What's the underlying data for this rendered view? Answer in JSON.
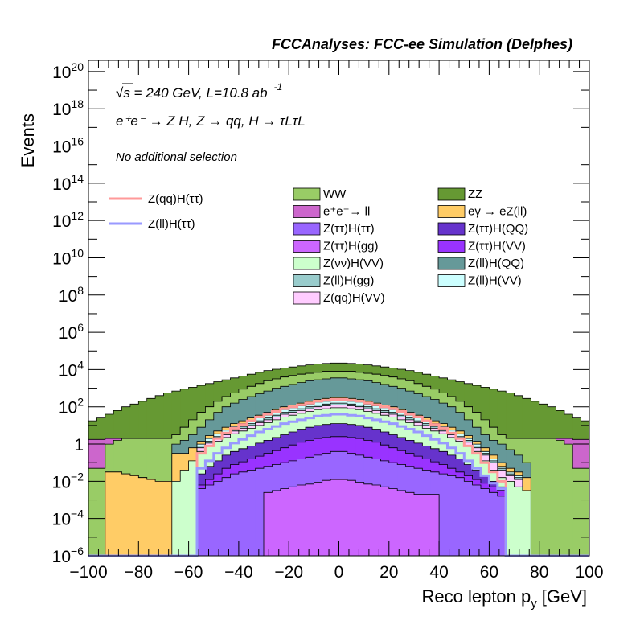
{
  "chart_data": {
    "type": "stacked_histogram",
    "title": "FCCAnalyses: FCC-ee Simulation (Delphes)",
    "xlabel": "Reco lepton p",
    "xlabel_sub": "y",
    "xlabel_unit": "[GeV]",
    "ylabel": "Events",
    "xlim": [
      -100,
      100
    ],
    "ylim_exp": [
      -6,
      20.6
    ],
    "yscale": "log",
    "x_ticks": [
      "−100",
      "−80",
      "−60",
      "−40",
      "−20",
      "0",
      "20",
      "40",
      "60",
      "80",
      "100"
    ],
    "x_tick_values": [
      -100,
      -80,
      -60,
      -40,
      -20,
      0,
      20,
      40,
      60,
      80,
      100
    ],
    "y_ticks": [
      {
        "exp": 20,
        "base": "10",
        "sup": "20"
      },
      {
        "exp": 18,
        "base": "10",
        "sup": "18"
      },
      {
        "exp": 16,
        "base": "10",
        "sup": "16"
      },
      {
        "exp": 14,
        "base": "10",
        "sup": "14"
      },
      {
        "exp": 12,
        "base": "10",
        "sup": "12"
      },
      {
        "exp": 10,
        "base": "10",
        "sup": "10"
      },
      {
        "exp": 8,
        "base": "10",
        "sup": "8"
      },
      {
        "exp": 6,
        "base": "10",
        "sup": "6"
      },
      {
        "exp": 4,
        "base": "10",
        "sup": "4"
      },
      {
        "exp": 2,
        "base": "10",
        "sup": "2"
      },
      {
        "exp": 0,
        "base": "1",
        "sup": ""
      },
      {
        "exp": -2,
        "base": "10",
        "sup": "−2"
      },
      {
        "exp": -4,
        "base": "10",
        "sup": "−4"
      },
      {
        "exp": -6,
        "base": "10",
        "sup": "−6"
      }
    ],
    "annotations": {
      "energy": "√s = 240 GeV, L=10.8 ab",
      "energy_sup": "-1",
      "process": "e⁺e⁻ → Z H, Z → qq, H → τLτL",
      "selection": "No additional selection"
    },
    "legend_lines": [
      {
        "name": "Z(qq)H(ττ)",
        "color": "#ff9999"
      },
      {
        "name": "Z(ll)H(ττ)",
        "color": "#9999ff"
      }
    ],
    "legend_fills": [
      {
        "name": "WW",
        "color": "#99cc66"
      },
      {
        "name": "ZZ",
        "color": "#669933"
      },
      {
        "name": "e⁺e⁻→ ll",
        "color": "#cc66cc"
      },
      {
        "name": "eγ → eZ(ll)",
        "color": "#ffcc66"
      },
      {
        "name": "Z(ττ)H(ττ)",
        "color": "#9966ff"
      },
      {
        "name": "Z(ττ)H(QQ)",
        "color": "#6633cc"
      },
      {
        "name": "Z(ττ)H(gg)",
        "color": "#cc66ff"
      },
      {
        "name": "Z(ττ)H(VV)",
        "color": "#9933ff"
      },
      {
        "name": "Z(νν)H(VV)",
        "color": "#ccffcc"
      },
      {
        "name": "Z(ll)H(QQ)",
        "color": "#669999"
      },
      {
        "name": "Z(ll)H(gg)",
        "color": "#99cccc"
      },
      {
        "name": "Z(ll)H(VV)",
        "color": "#ccffff"
      },
      {
        "name": "Z(qq)H(VV)",
        "color": "#ffccff"
      }
    ],
    "stack_layers": [
      {
        "name": "Z(ττ)H(gg)",
        "color": "#cc66ff",
        "top": [
          -6,
          -6,
          -6,
          -6,
          -6,
          -6,
          -6,
          -6,
          -6,
          -6,
          -6,
          -6,
          -6,
          -6,
          -6,
          -6,
          -6,
          -6,
          -6,
          -6,
          -6,
          -2.6,
          -2.5,
          -2.4,
          -2.3,
          -2.2,
          -2.15,
          -2.05,
          -1.95,
          -1.9,
          -1.9,
          -1.95,
          -2.05,
          -2.15,
          -2.2,
          -2.3,
          -2.4,
          -2.5,
          -2.6,
          -2.7,
          -2.7,
          -2.7,
          -6,
          -6,
          -6,
          -6,
          -6,
          -6,
          -6,
          -6,
          -6,
          -6,
          -6,
          -6,
          -6,
          -6,
          -6,
          -6,
          -6,
          -6
        ]
      },
      {
        "name": "Z(ττ)H(ττ)",
        "color": "#9966ff",
        "top": [
          -6,
          -6,
          -6,
          -6,
          -6,
          -6,
          -6,
          -6,
          -6,
          -6,
          -6,
          -6,
          -6,
          -2.4,
          -2.2,
          -2,
          -1.8,
          -1.6,
          -1.5,
          -1.4,
          -1.3,
          -1.2,
          -1.1,
          -1,
          -0.9,
          -0.8,
          -0.7,
          -0.6,
          -0.5,
          -0.4,
          -0.4,
          -0.5,
          -0.6,
          -0.7,
          -0.8,
          -0.9,
          -1,
          -1.1,
          -1.2,
          -1.3,
          -1.4,
          -1.5,
          -1.6,
          -1.7,
          -1.8,
          -2,
          -2.2,
          -2.4,
          -2.6,
          -2.8,
          -6,
          -6,
          -6,
          -6,
          -6,
          -6,
          -6,
          -6,
          -6,
          -6
        ]
      },
      {
        "name": "Z(ττ)H(VV)",
        "color": "#9933ff",
        "top": [
          -6,
          -6,
          -6,
          -6,
          -6,
          -6,
          -6,
          -6,
          -6,
          -6,
          -6,
          -6,
          -6,
          -2.2,
          -1.9,
          -1.6,
          -1.3,
          -1.1,
          -0.95,
          -0.8,
          -0.65,
          -0.5,
          -0.35,
          -0.2,
          -0.05,
          0.1,
          0.2,
          0.3,
          0.35,
          0.4,
          0.4,
          0.35,
          0.3,
          0.2,
          0.1,
          -0.05,
          -0.2,
          -0.35,
          -0.5,
          -0.65,
          -0.8,
          -0.95,
          -1.1,
          -1.3,
          -1.5,
          -1.7,
          -1.9,
          -2.1,
          -2.3,
          -2.5,
          -6,
          -6,
          -6,
          -6,
          -6,
          -6,
          -6,
          -6,
          -6,
          -6
        ]
      },
      {
        "name": "Z(ττ)H(QQ)",
        "color": "#6633cc",
        "top": [
          -6,
          -6,
          -6,
          -6,
          -6,
          -6,
          -6,
          -6,
          -6,
          -6,
          -6,
          -6,
          -6,
          -1.6,
          -1.2,
          -0.9,
          -0.6,
          -0.4,
          -0.25,
          -0.1,
          0.05,
          0.2,
          0.35,
          0.5,
          0.65,
          0.8,
          0.9,
          1,
          1.05,
          1.1,
          1.1,
          1.05,
          1,
          0.9,
          0.8,
          0.65,
          0.5,
          0.35,
          0.2,
          0.05,
          -0.1,
          -0.25,
          -0.4,
          -0.6,
          -0.8,
          -1.1,
          -1.4,
          -1.7,
          -2,
          -2.3,
          -6,
          -6,
          -6,
          -6,
          -6,
          -6,
          -6,
          -6,
          -6,
          -6
        ]
      },
      {
        "name": "Z(νν)H(VV)",
        "color": "#ccffcc",
        "top": [
          -6,
          -6,
          -6,
          -6,
          -6,
          -6,
          -6,
          -6,
          -6,
          -6,
          -2,
          -1.4,
          -0.9,
          -0.4,
          -0.1,
          0.15,
          0.35,
          0.55,
          0.7,
          0.85,
          1,
          1.15,
          1.3,
          1.45,
          1.55,
          1.65,
          1.75,
          1.85,
          1.9,
          1.95,
          1.95,
          1.9,
          1.85,
          1.75,
          1.65,
          1.55,
          1.45,
          1.3,
          1.15,
          1,
          0.85,
          0.7,
          0.55,
          0.35,
          0.15,
          -0.1,
          -0.4,
          -0.9,
          -1.4,
          -1.8,
          -2,
          -2.3,
          -2.5,
          -6,
          -6,
          -6,
          -6,
          -6,
          -6,
          -6
        ]
      },
      {
        "name": "Z(qq)H(VV)",
        "color": "#ffccff",
        "top": [
          -6,
          -6,
          -6,
          -6,
          -6,
          -6,
          -6,
          -6,
          -6,
          -6,
          -6,
          -6,
          -6,
          -0.2,
          0.05,
          0.3,
          0.5,
          0.7,
          0.85,
          1,
          1.15,
          1.3,
          1.45,
          1.6,
          1.7,
          1.8,
          1.9,
          2,
          2.05,
          2.1,
          2.1,
          2.05,
          2,
          1.9,
          1.8,
          1.7,
          1.6,
          1.45,
          1.3,
          1.15,
          1,
          0.85,
          0.7,
          0.5,
          0.3,
          0.1,
          -0.2,
          -0.6,
          -1,
          -1.4,
          -1.7,
          -1.9,
          -6,
          -6,
          -6,
          -6,
          -6,
          -6,
          -6,
          -6
        ]
      },
      {
        "name": "Z(ll)H(gg)",
        "color": "#99cccc",
        "top": [
          -6,
          -6,
          -6,
          -6,
          -6,
          -6,
          -6,
          -6,
          -6,
          -6,
          -6,
          -6,
          -6,
          -0.1,
          0.15,
          0.4,
          0.6,
          0.8,
          0.95,
          1.1,
          1.25,
          1.4,
          1.55,
          1.7,
          1.8,
          1.9,
          2,
          2.1,
          2.15,
          2.2,
          2.2,
          2.15,
          2.1,
          2,
          1.9,
          1.8,
          1.7,
          1.55,
          1.4,
          1.25,
          1.1,
          0.95,
          0.8,
          0.6,
          0.4,
          0.2,
          -0.1,
          -0.5,
          -0.9,
          -1.3,
          -1.6,
          -1.8,
          -6,
          -6,
          -6,
          -6,
          -6,
          -6,
          -6,
          -6
        ]
      },
      {
        "name": "Z(ll)H(VV)",
        "color": "#ccffff",
        "top": [
          -6,
          -6,
          -6,
          -6,
          -6,
          -6,
          -6,
          -6,
          -6,
          -6,
          -6,
          -6,
          -6,
          0,
          0.3,
          0.55,
          0.75,
          0.95,
          1.1,
          1.25,
          1.4,
          1.55,
          1.7,
          1.85,
          1.95,
          2.05,
          2.15,
          2.25,
          2.3,
          2.35,
          2.35,
          2.3,
          2.25,
          2.15,
          2.05,
          1.95,
          1.85,
          1.7,
          1.55,
          1.4,
          1.25,
          1.1,
          0.95,
          0.75,
          0.55,
          0.3,
          0,
          -0.4,
          -0.8,
          -1.2,
          -1.5,
          -1.7,
          -6,
          -6,
          -6,
          -6,
          -6,
          -6,
          -6,
          -6
        ]
      },
      {
        "name": "eγ → eZ(ll)",
        "color": "#ffcc66",
        "top": [
          -6,
          -6,
          -1.5,
          -1.5,
          -1.6,
          -1.7,
          -1.8,
          -1.9,
          -2,
          -2,
          -0.5,
          -0.5,
          -0.2,
          0.15,
          0.45,
          0.7,
          0.9,
          1.1,
          1.25,
          1.4,
          1.55,
          1.7,
          1.85,
          2,
          2.1,
          2.2,
          2.3,
          2.4,
          2.45,
          2.5,
          2.5,
          2.45,
          2.4,
          2.3,
          2.2,
          2.1,
          2,
          1.85,
          1.7,
          1.55,
          1.4,
          1.25,
          1.1,
          0.9,
          0.7,
          0.45,
          0.15,
          -0.2,
          -0.6,
          -1,
          -1.3,
          -1.5,
          -1.8,
          -6,
          -6,
          -6,
          -6,
          -6,
          -6,
          -6
        ]
      },
      {
        "name": "Z(ll)H(QQ)",
        "color": "#669999",
        "top": [
          -6,
          -6,
          -1.5,
          -1.5,
          -1.6,
          -1.7,
          -1.8,
          -1.9,
          -2,
          -2,
          0,
          0.2,
          0.5,
          0.9,
          1.3,
          1.7,
          2,
          2.2,
          2.4,
          2.55,
          2.7,
          2.85,
          3,
          3.1,
          3.2,
          3.3,
          3.4,
          3.45,
          3.5,
          3.55,
          3.55,
          3.5,
          3.45,
          3.4,
          3.3,
          3.2,
          3.1,
          3,
          2.85,
          2.7,
          2.55,
          2.4,
          2.2,
          2,
          1.7,
          1.3,
          0.9,
          0.5,
          0.2,
          0,
          -0.3,
          -0.6,
          -1,
          -6,
          -6,
          -6,
          -6,
          -6,
          -6,
          -6
        ]
      },
      {
        "name": "WW",
        "color": "#99cc66",
        "top": [
          -1.3,
          -1.3,
          0,
          0.2,
          0.3,
          0.3,
          0.3,
          0.3,
          0.3,
          0.3,
          0.5,
          0.9,
          1.3,
          1.7,
          2,
          2.3,
          2.55,
          2.75,
          2.95,
          3.1,
          3.25,
          3.4,
          3.5,
          3.6,
          3.7,
          3.75,
          3.8,
          3.85,
          3.9,
          3.9,
          3.9,
          3.9,
          3.85,
          3.8,
          3.75,
          3.7,
          3.6,
          3.5,
          3.4,
          3.25,
          3.1,
          2.95,
          2.75,
          2.55,
          2.3,
          2,
          1.7,
          1.3,
          0.9,
          0.5,
          0.3,
          0.3,
          0.3,
          0.3,
          0.3,
          0.3,
          0.2,
          0,
          -1.3,
          -1.3
        ]
      },
      {
        "name": "e⁺e⁻→ ll",
        "color": "#cc66cc",
        "top": [
          0.25,
          0.25,
          0.3,
          0.3,
          0.3,
          0.3,
          0.3,
          0.3,
          0.3,
          0.3,
          0.5,
          0.9,
          1.3,
          1.7,
          2,
          2.3,
          2.55,
          2.75,
          2.95,
          3.1,
          3.25,
          3.4,
          3.5,
          3.6,
          3.7,
          3.75,
          3.8,
          3.85,
          3.9,
          3.9,
          3.9,
          3.9,
          3.85,
          3.8,
          3.75,
          3.7,
          3.6,
          3.5,
          3.4,
          3.25,
          3.1,
          2.95,
          2.75,
          2.55,
          2.3,
          2,
          1.7,
          1.3,
          0.9,
          0.5,
          0.3,
          0.3,
          0.3,
          0.3,
          0.3,
          0.3,
          0.3,
          0.3,
          0.25,
          0.25
        ]
      },
      {
        "name": "ZZ",
        "color": "#669933",
        "top": [
          1.25,
          1.4,
          1.6,
          1.8,
          2,
          2.15,
          2.3,
          2.45,
          2.6,
          2.75,
          2.85,
          2.95,
          3.05,
          3.15,
          3.25,
          3.35,
          3.45,
          3.55,
          3.65,
          3.75,
          3.85,
          3.95,
          4.02,
          4.08,
          4.14,
          4.2,
          4.25,
          4.3,
          4.33,
          4.35,
          4.35,
          4.33,
          4.3,
          4.25,
          4.2,
          4.14,
          4.08,
          4.02,
          3.95,
          3.85,
          3.75,
          3.65,
          3.55,
          3.45,
          3.35,
          3.25,
          3.15,
          3.05,
          2.95,
          2.85,
          2.75,
          2.6,
          2.45,
          2.3,
          2.15,
          2,
          1.8,
          1.6,
          1.4,
          1.25
        ]
      }
    ],
    "signal_lines": [
      {
        "name": "Z(qq)H(ττ)",
        "color": "#ff9999",
        "values": [
          -6,
          -6,
          -6,
          -6,
          -6,
          -6,
          -6,
          -6,
          -6,
          -6,
          -6,
          -6,
          -6,
          -0.5,
          -0.1,
          0.3,
          0.6,
          0.85,
          1.05,
          1.25,
          1.45,
          1.6,
          1.75,
          1.9,
          2,
          2.1,
          2.2,
          2.3,
          2.35,
          2.4,
          2.4,
          2.35,
          2.3,
          2.2,
          2.1,
          2,
          1.9,
          1.75,
          1.6,
          1.45,
          1.25,
          1.05,
          0.85,
          0.6,
          0.3,
          -0.1,
          -0.5,
          -1,
          -1.5,
          -2,
          -6,
          -6,
          -6,
          -6,
          -6,
          -6,
          -6,
          -6,
          -6,
          -6
        ]
      },
      {
        "name": "Z(ll)H(ττ)",
        "color": "#9999ff",
        "values": [
          -6,
          -6,
          -6,
          -6,
          -6,
          -6,
          -6,
          -6,
          -6,
          -6,
          -6,
          -6,
          -6,
          -1.3,
          -0.9,
          -0.5,
          -0.2,
          0.05,
          0.25,
          0.45,
          0.65,
          0.8,
          0.95,
          1.1,
          1.2,
          1.3,
          1.4,
          1.5,
          1.55,
          1.6,
          1.6,
          1.55,
          1.5,
          1.4,
          1.3,
          1.2,
          1.1,
          0.95,
          0.8,
          0.65,
          0.45,
          0.25,
          0.05,
          -0.2,
          -0.5,
          -0.9,
          -1.3,
          -1.7,
          -2.1,
          -2.4,
          -6,
          -6,
          -6,
          -6,
          -6,
          -6,
          -6,
          -6,
          -6,
          -6
        ]
      }
    ]
  }
}
